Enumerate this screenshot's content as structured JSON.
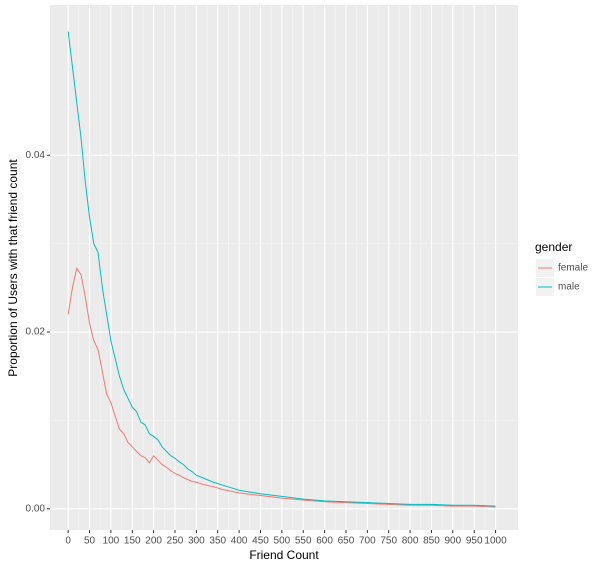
{
  "chart_data": {
    "type": "line",
    "xlabel": "Friend Count",
    "ylabel": "Proportion of Users with that friend count",
    "x": [
      0,
      10,
      20,
      30,
      40,
      50,
      60,
      70,
      80,
      90,
      100,
      110,
      120,
      130,
      140,
      150,
      160,
      170,
      180,
      190,
      200,
      210,
      220,
      230,
      240,
      250,
      260,
      270,
      280,
      290,
      300,
      320,
      340,
      360,
      380,
      400,
      450,
      500,
      550,
      600,
      650,
      700,
      750,
      800,
      850,
      900,
      950,
      1000
    ],
    "series": [
      {
        "name": "female",
        "color": "#F8766D",
        "values": [
          0.022,
          0.025,
          0.0272,
          0.0265,
          0.024,
          0.021,
          0.019,
          0.018,
          0.0155,
          0.013,
          0.012,
          0.0105,
          0.009,
          0.0085,
          0.0075,
          0.007,
          0.0065,
          0.006,
          0.0058,
          0.0052,
          0.006,
          0.0055,
          0.005,
          0.0047,
          0.0043,
          0.004,
          0.0038,
          0.0035,
          0.0033,
          0.0031,
          0.003,
          0.0027,
          0.0025,
          0.0022,
          0.002,
          0.0018,
          0.0015,
          0.0012,
          0.001,
          0.0008,
          0.0007,
          0.0006,
          0.0005,
          0.0004,
          0.0004,
          0.0003,
          0.0003,
          0.0002
        ]
      },
      {
        "name": "male",
        "color": "#00BFC4",
        "values": [
          0.054,
          0.05,
          0.046,
          0.042,
          0.037,
          0.033,
          0.03,
          0.029,
          0.025,
          0.022,
          0.019,
          0.017,
          0.015,
          0.0135,
          0.0125,
          0.0115,
          0.011,
          0.0098,
          0.0095,
          0.0085,
          0.0082,
          0.0078,
          0.007,
          0.0065,
          0.006,
          0.0057,
          0.0053,
          0.005,
          0.0045,
          0.0042,
          0.0038,
          0.0034,
          0.003,
          0.0027,
          0.0024,
          0.0021,
          0.0017,
          0.0014,
          0.0011,
          0.0009,
          0.0008,
          0.0007,
          0.0006,
          0.0005,
          0.0005,
          0.0004,
          0.0004,
          0.0003
        ]
      }
    ],
    "legend_title": "gender",
    "legend": "right",
    "grid": true,
    "xlim": [
      -42.5,
      1052.5
    ],
    "ylim": [
      -0.0024,
      0.057
    ],
    "xticks": [
      0,
      50,
      100,
      150,
      200,
      250,
      300,
      350,
      400,
      450,
      500,
      550,
      600,
      650,
      700,
      750,
      800,
      850,
      900,
      950,
      1000
    ],
    "yticks": [
      {
        "value": 0,
        "label": "0.00"
      },
      {
        "value": 0.02,
        "label": "0.02"
      },
      {
        "value": 0.04,
        "label": "0.04"
      }
    ]
  }
}
